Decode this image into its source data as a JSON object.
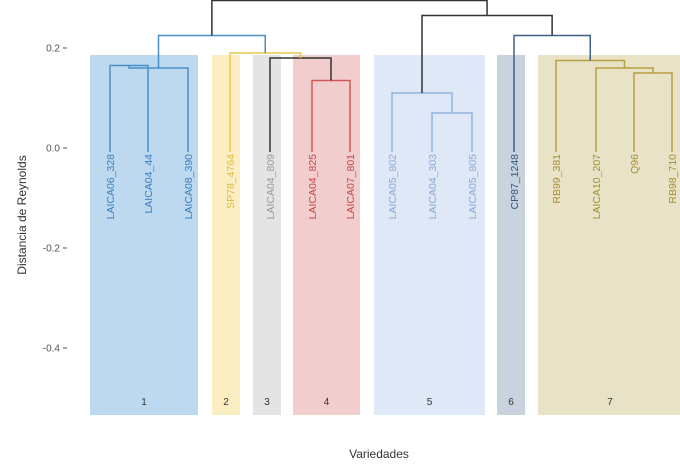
{
  "chart_data": {
    "type": "dendrogram",
    "ylabel": "Distancia de Reynolds",
    "xlabel": "Variedades",
    "ylim": [
      -0.5,
      0.25
    ],
    "yticks": [
      {
        "value": 0.2,
        "label": "0.2"
      },
      {
        "value": 0.0,
        "label": "0.0"
      },
      {
        "value": -0.2,
        "label": "-0.2"
      },
      {
        "value": -0.4,
        "label": "-0.4"
      }
    ],
    "leaves": [
      {
        "label": "LAICA06_328",
        "cluster": 0
      },
      {
        "label": "LAICA04_44",
        "cluster": 0
      },
      {
        "label": "LAICA08_390",
        "cluster": 0
      },
      {
        "label": "SP78_4764",
        "cluster": 1
      },
      {
        "label": "LAICA04_809",
        "cluster": 2
      },
      {
        "label": "LAICA04_825",
        "cluster": 3
      },
      {
        "label": "LAICA07_801",
        "cluster": 3
      },
      {
        "label": "LAICA05_802",
        "cluster": 4
      },
      {
        "label": "LAICA04_303",
        "cluster": 4
      },
      {
        "label": "LAICA05_805",
        "cluster": 4
      },
      {
        "label": "CP87_1248",
        "cluster": 5
      },
      {
        "label": "RB99_381",
        "cluster": 6
      },
      {
        "label": "LAICA10_207",
        "cluster": 6
      },
      {
        "label": "Q96",
        "cluster": 6
      },
      {
        "label": "RB98_710",
        "cluster": 6
      }
    ],
    "clusters": [
      {
        "label": "1",
        "color": "#bdd9ef",
        "line_color": "#4a90c8",
        "text_color": "#3a7fc0"
      },
      {
        "label": "2",
        "color": "#fbeec2",
        "line_color": "#e8c84a",
        "text_color": "#e0bc3a"
      },
      {
        "label": "3",
        "color": "#e4e4e4",
        "line_color": "#a8a8a8",
        "text_color": "#9a9a9a"
      },
      {
        "label": "4",
        "color": "#f2cdcd",
        "line_color": "#d05858",
        "text_color": "#c84848"
      },
      {
        "label": "5",
        "color": "#dfe8f6",
        "line_color": "#90b2de",
        "text_color": "#88aad8"
      },
      {
        "label": "6",
        "color": "#c9d3de",
        "line_color": "#3e6088",
        "text_color": "#34567e"
      },
      {
        "label": "7",
        "color": "#e8e2c6",
        "line_color": "#b8a040",
        "text_color": "#a89030"
      }
    ],
    "merges": [
      {
        "a": "L0",
        "b": "L1",
        "height": 0.165,
        "color": 0
      },
      {
        "a": "M0",
        "b": "L2",
        "height": 0.16,
        "color": 0
      },
      {
        "a": "L5",
        "b": "L6",
        "height": 0.135,
        "color": 3
      },
      {
        "a": "L8",
        "b": "L9",
        "height": 0.07,
        "color": 4
      },
      {
        "a": "L7",
        "b": "M3",
        "height": 0.11,
        "color": 4
      },
      {
        "a": "L13",
        "b": "L14",
        "height": 0.15,
        "color": 6
      },
      {
        "a": "L12",
        "b": "M5",
        "height": 0.16,
        "color": 6
      },
      {
        "a": "L11",
        "b": "M6",
        "height": 0.175,
        "color": 6
      },
      {
        "a": "L4",
        "b": "M2",
        "height": 0.18,
        "color": "black"
      },
      {
        "a": "L3",
        "b": "M8",
        "height": 0.19,
        "color": 1
      },
      {
        "a": "M1",
        "b": "M9",
        "height": 0.225,
        "color": 0
      },
      {
        "a": "L10",
        "b": "M7",
        "height": 0.225,
        "color": 5
      },
      {
        "a": "M4",
        "b": "M11",
        "height": 0.265,
        "color": "black"
      },
      {
        "a": "M10",
        "b": "M12",
        "height": 0.295,
        "color": "black"
      }
    ],
    "colors": {
      "axis_text": "#555555",
      "black_branch": "#333333"
    }
  }
}
